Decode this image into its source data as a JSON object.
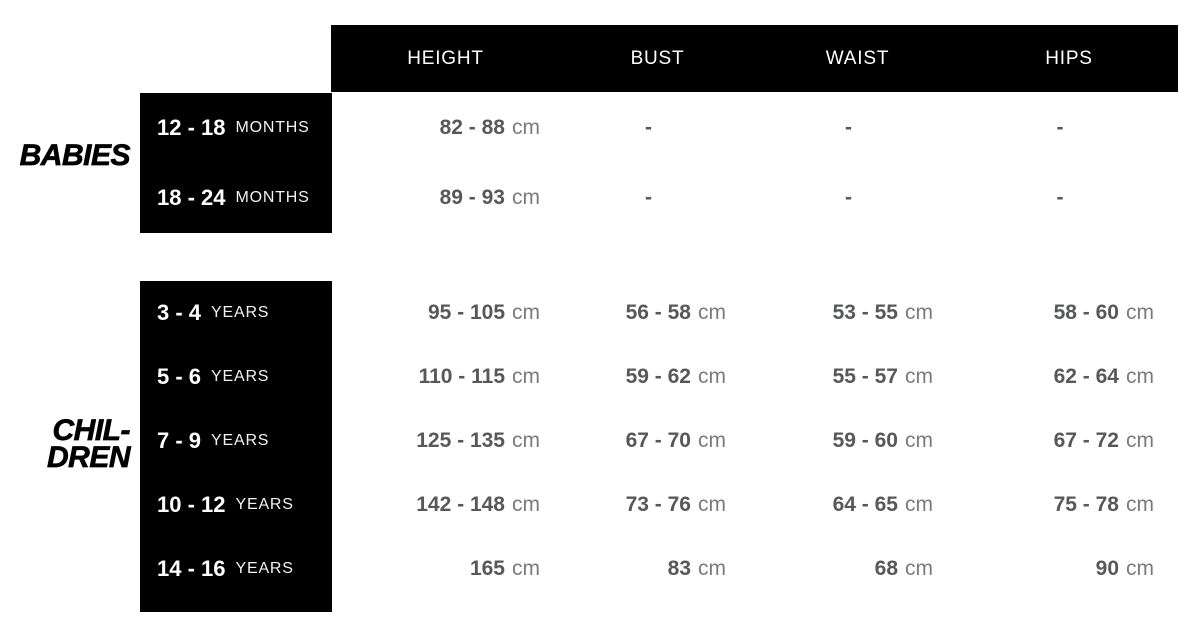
{
  "colors": {
    "background": "#ffffff",
    "block_black": "#000000",
    "header_text": "#ffffff",
    "value_number": "#57585a",
    "value_unit": "#7a7b7e"
  },
  "table": {
    "columns": [
      "HEIGHT",
      "BUST",
      "WAIST",
      "HIPS"
    ],
    "sections": [
      {
        "label_lines": [
          "BABIES"
        ],
        "rows": [
          {
            "range": "12 - 18",
            "unit": "MONTHS",
            "cells": [
              {
                "value": "82 - 88",
                "unit": "cm"
              },
              {
                "value": "-"
              },
              {
                "value": "-"
              },
              {
                "value": "-"
              }
            ]
          },
          {
            "range": "18 - 24",
            "unit": "MONTHS",
            "cells": [
              {
                "value": "89 - 93",
                "unit": "cm"
              },
              {
                "value": "-"
              },
              {
                "value": "-"
              },
              {
                "value": "-"
              }
            ]
          }
        ]
      },
      {
        "label_lines": [
          "CHIL-",
          "DREN"
        ],
        "rows": [
          {
            "range": "3 - 4",
            "unit": "YEARS",
            "cells": [
              {
                "value": "95 - 105",
                "unit": "cm"
              },
              {
                "value": "56 - 58",
                "unit": "cm"
              },
              {
                "value": "53 - 55",
                "unit": "cm"
              },
              {
                "value": "58 - 60",
                "unit": "cm"
              }
            ]
          },
          {
            "range": "5 - 6",
            "unit": "YEARS",
            "cells": [
              {
                "value": "110 - 115",
                "unit": "cm"
              },
              {
                "value": "59 - 62",
                "unit": "cm"
              },
              {
                "value": "55 - 57",
                "unit": "cm"
              },
              {
                "value": "62 - 64",
                "unit": "cm"
              }
            ]
          },
          {
            "range": "7 - 9",
            "unit": "YEARS",
            "cells": [
              {
                "value": "125 - 135",
                "unit": "cm"
              },
              {
                "value": "67 - 70",
                "unit": "cm"
              },
              {
                "value": "59 - 60",
                "unit": "cm"
              },
              {
                "value": "67 - 72",
                "unit": "cm"
              }
            ]
          },
          {
            "range": "10 - 12",
            "unit": "YEARS",
            "cells": [
              {
                "value": "142 - 148",
                "unit": "cm"
              },
              {
                "value": "73 - 76",
                "unit": "cm"
              },
              {
                "value": "64 - 65",
                "unit": "cm"
              },
              {
                "value": "75 - 78",
                "unit": "cm"
              }
            ]
          },
          {
            "range": "14 - 16",
            "unit": "YEARS",
            "cells": [
              {
                "value": "165",
                "unit": "cm"
              },
              {
                "value": "83",
                "unit": "cm"
              },
              {
                "value": "68",
                "unit": "cm"
              },
              {
                "value": "90",
                "unit": "cm"
              }
            ]
          }
        ]
      }
    ]
  }
}
